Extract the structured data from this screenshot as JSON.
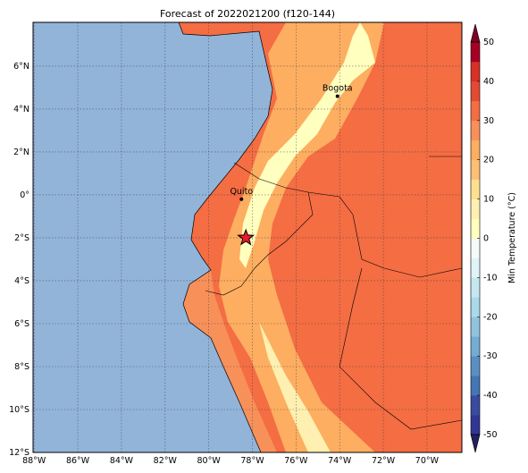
{
  "map": {
    "title": "Forecast of 2022021200 (f120-144)",
    "lonlim": [
      -88.05,
      -68.4
    ],
    "latlim": [
      -12,
      8.04
    ],
    "xticks": [
      {
        "value": -88,
        "label": "88°W"
      },
      {
        "value": -86,
        "label": "86°W"
      },
      {
        "value": -84,
        "label": "84°W"
      },
      {
        "value": -82,
        "label": "82°W"
      },
      {
        "value": -80,
        "label": "80°W"
      },
      {
        "value": -78,
        "label": "78°W"
      },
      {
        "value": -76,
        "label": "76°W"
      },
      {
        "value": -74,
        "label": "74°W"
      },
      {
        "value": -72,
        "label": "72°W"
      },
      {
        "value": -70,
        "label": "70°W"
      }
    ],
    "yticks": [
      {
        "value": 6,
        "label": "6°N"
      },
      {
        "value": 4,
        "label": "4°N"
      },
      {
        "value": 2,
        "label": "2°N"
      },
      {
        "value": 0,
        "label": "0°"
      },
      {
        "value": -2,
        "label": "2°S"
      },
      {
        "value": -4,
        "label": "4°S"
      },
      {
        "value": -6,
        "label": "6°S"
      },
      {
        "value": -8,
        "label": "8°S"
      },
      {
        "value": -10,
        "label": "10°S"
      },
      {
        "value": -12,
        "label": "12°S"
      }
    ],
    "cities": [
      {
        "name": "Bogota",
        "lon": -74.1,
        "lat": 4.6
      },
      {
        "name": "Quito",
        "lon": -78.5,
        "lat": -0.2
      }
    ],
    "star": {
      "lon": -78.3,
      "lat": -2
    },
    "colorbar": {
      "label": "Min Temperature (°C)",
      "lim": [
        -50,
        50
      ],
      "ticks": [
        50,
        40,
        30,
        20,
        10,
        0,
        -10,
        -20,
        -30,
        -40,
        -50
      ],
      "colors": [
        "#313695",
        "#3a4a9e",
        "#4575b4",
        "#5b8fc3",
        "#74add1",
        "#91c3de",
        "#abd9e9",
        "#c6e6f0",
        "#e0f3f8",
        "#f4fbf8",
        "#ffffbf",
        "#fef0b0",
        "#fee090",
        "#fdbf75",
        "#fdae61",
        "#f8905a",
        "#f46d43",
        "#e34a33",
        "#d73027",
        "#a50026"
      ]
    }
  }
}
